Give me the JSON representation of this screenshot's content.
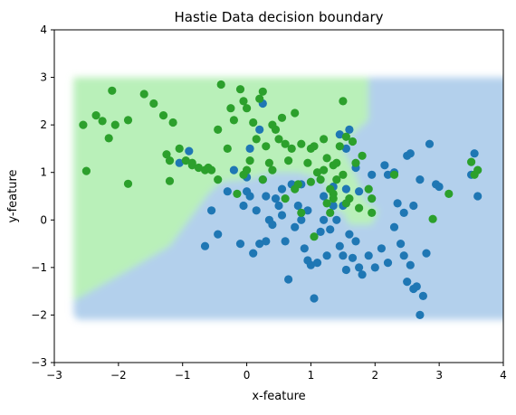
{
  "chart_data": {
    "type": "scatter",
    "title": "Hastie Data decision boundary",
    "xlabel": "x-feature",
    "ylabel": "y-feature",
    "xlim": [
      -3,
      4
    ],
    "ylim": [
      -3,
      4
    ],
    "x_ticks": [
      "−3",
      "−2",
      "−1",
      "0",
      "1",
      "2",
      "3",
      "4"
    ],
    "y_ticks": [
      "−3",
      "−2",
      "−1",
      "0",
      "1",
      "2",
      "3",
      "4"
    ],
    "grid": false,
    "legend": "none",
    "background_regions": {
      "green_region": "#b9f0b9",
      "blue_region": "#b3d0ec",
      "region_extent_x": [
        -2.7,
        4.0
      ],
      "region_extent_y": [
        -2.1,
        3.0
      ],
      "boundary_polygon_green": [
        [
          -2.7,
          3.0
        ],
        [
          1.9,
          3.0
        ],
        [
          1.9,
          2.1
        ],
        [
          1.6,
          1.75
        ],
        [
          1.5,
          1.5
        ],
        [
          1.65,
          1.1
        ],
        [
          1.85,
          0.4
        ],
        [
          2.05,
          0.2
        ],
        [
          1.95,
          -0.1
        ],
        [
          1.6,
          -0.1
        ],
        [
          1.5,
          0.15
        ],
        [
          1.3,
          0.3
        ],
        [
          1.2,
          0.85
        ],
        [
          0.8,
          1.0
        ],
        [
          0.4,
          1.0
        ],
        [
          0.0,
          0.85
        ],
        [
          -0.4,
          0.8
        ],
        [
          -0.6,
          0.55
        ],
        [
          -1.2,
          -0.55
        ],
        [
          -1.9,
          -1.1
        ],
        [
          -2.7,
          -1.7
        ]
      ]
    },
    "series": [
      {
        "color": "#1f77b4",
        "points": [
          [
            -0.45,
            -0.3
          ],
          [
            -0.65,
            -0.55
          ],
          [
            -0.55,
            0.2
          ],
          [
            -0.9,
            1.45
          ],
          [
            -1.05,
            1.2
          ],
          [
            -0.1,
            -0.5
          ],
          [
            0.0,
            0.6
          ],
          [
            0.05,
            0.5
          ],
          [
            0.15,
            0.2
          ],
          [
            0.1,
            -0.7
          ],
          [
            0.2,
            -0.5
          ],
          [
            0.25,
            0.85
          ],
          [
            0.3,
            0.5
          ],
          [
            0.35,
            0.0
          ],
          [
            0.4,
            -0.1
          ],
          [
            0.45,
            0.45
          ],
          [
            0.5,
            0.3
          ],
          [
            0.55,
            0.1
          ],
          [
            0.6,
            -0.45
          ],
          [
            0.65,
            -1.25
          ],
          [
            0.7,
            0.75
          ],
          [
            0.75,
            -0.15
          ],
          [
            0.8,
            0.3
          ],
          [
            0.85,
            0.0
          ],
          [
            0.9,
            -0.6
          ],
          [
            0.95,
            -0.85
          ],
          [
            1.0,
            -0.95
          ],
          [
            1.05,
            -1.65
          ],
          [
            1.1,
            -0.9
          ],
          [
            1.15,
            -0.25
          ],
          [
            1.2,
            0.0
          ],
          [
            1.25,
            -0.75
          ],
          [
            1.3,
            -0.2
          ],
          [
            1.35,
            0.3
          ],
          [
            1.4,
            0.0
          ],
          [
            1.45,
            -0.55
          ],
          [
            1.5,
            -0.75
          ],
          [
            1.55,
            -1.05
          ],
          [
            1.6,
            -0.3
          ],
          [
            1.65,
            -0.8
          ],
          [
            1.7,
            -0.45
          ],
          [
            1.75,
            -1.0
          ],
          [
            1.8,
            -1.15
          ],
          [
            1.9,
            -0.75
          ],
          [
            2.0,
            -1.0
          ],
          [
            2.1,
            -0.6
          ],
          [
            2.2,
            -0.9
          ],
          [
            2.3,
            -0.15
          ],
          [
            2.4,
            -0.5
          ],
          [
            2.45,
            -0.75
          ],
          [
            2.5,
            -1.3
          ],
          [
            2.55,
            -0.95
          ],
          [
            2.6,
            -1.45
          ],
          [
            2.65,
            -1.4
          ],
          [
            2.7,
            -2.0
          ],
          [
            2.75,
            -1.6
          ],
          [
            2.8,
            -0.7
          ],
          [
            2.2,
            0.95
          ],
          [
            2.3,
            1.0
          ],
          [
            2.35,
            0.35
          ],
          [
            2.45,
            0.15
          ],
          [
            2.5,
            1.35
          ],
          [
            2.55,
            1.4
          ],
          [
            2.6,
            0.3
          ],
          [
            2.7,
            0.85
          ],
          [
            2.85,
            1.6
          ],
          [
            2.95,
            0.75
          ],
          [
            3.0,
            0.7
          ],
          [
            2.15,
            1.15
          ],
          [
            1.95,
            0.95
          ],
          [
            1.55,
            1.5
          ],
          [
            1.45,
            1.8
          ],
          [
            1.6,
            1.9
          ],
          [
            1.7,
            1.1
          ],
          [
            1.75,
            0.6
          ],
          [
            1.5,
            0.3
          ],
          [
            1.55,
            0.65
          ],
          [
            3.55,
            1.4
          ],
          [
            3.6,
            0.5
          ],
          [
            3.5,
            0.95
          ],
          [
            0.0,
            0.9
          ],
          [
            -0.2,
            1.05
          ],
          [
            0.05,
            1.5
          ],
          [
            0.25,
            2.45
          ],
          [
            0.2,
            1.9
          ],
          [
            -0.05,
            0.3
          ],
          [
            0.95,
            0.2
          ],
          [
            0.85,
            0.75
          ],
          [
            1.2,
            0.5
          ],
          [
            0.3,
            -0.45
          ],
          [
            -0.3,
            0.6
          ],
          [
            0.55,
            0.65
          ],
          [
            1.35,
            0.7
          ]
        ]
      },
      {
        "color": "#2ca02c",
        "points": [
          [
            -2.55,
            2.0
          ],
          [
            -2.5,
            1.03
          ],
          [
            -2.35,
            2.2
          ],
          [
            -2.25,
            2.08
          ],
          [
            -2.15,
            1.72
          ],
          [
            -2.1,
            2.72
          ],
          [
            -2.05,
            2.0
          ],
          [
            -1.85,
            0.76
          ],
          [
            -1.85,
            2.1
          ],
          [
            -1.6,
            2.65
          ],
          [
            -1.45,
            2.45
          ],
          [
            -1.3,
            2.2
          ],
          [
            -1.25,
            1.38
          ],
          [
            -1.2,
            1.25
          ],
          [
            -1.2,
            0.82
          ],
          [
            -1.15,
            2.05
          ],
          [
            -1.05,
            1.5
          ],
          [
            -0.95,
            1.25
          ],
          [
            -0.85,
            1.15
          ],
          [
            -0.75,
            1.1
          ],
          [
            -0.65,
            1.05
          ],
          [
            -0.55,
            1.05
          ],
          [
            -0.45,
            0.85
          ],
          [
            -0.45,
            1.9
          ],
          [
            -0.4,
            2.85
          ],
          [
            -0.3,
            1.5
          ],
          [
            -0.25,
            2.35
          ],
          [
            -0.2,
            2.1
          ],
          [
            -0.15,
            0.55
          ],
          [
            -0.1,
            2.75
          ],
          [
            -0.05,
            2.5
          ],
          [
            0.0,
            2.35
          ],
          [
            0.0,
            1.05
          ],
          [
            0.05,
            1.25
          ],
          [
            0.1,
            2.05
          ],
          [
            0.15,
            1.7
          ],
          [
            0.2,
            2.55
          ],
          [
            0.25,
            2.7
          ],
          [
            0.3,
            1.55
          ],
          [
            0.35,
            1.2
          ],
          [
            0.4,
            2.0
          ],
          [
            0.45,
            1.9
          ],
          [
            0.5,
            1.7
          ],
          [
            0.55,
            2.15
          ],
          [
            0.6,
            1.6
          ],
          [
            0.65,
            1.25
          ],
          [
            0.7,
            1.5
          ],
          [
            0.75,
            2.25
          ],
          [
            0.8,
            0.75
          ],
          [
            0.85,
            1.6
          ],
          [
            0.95,
            1.2
          ],
          [
            1.0,
            1.5
          ],
          [
            1.05,
            1.55
          ],
          [
            1.1,
            1.0
          ],
          [
            1.15,
            0.85
          ],
          [
            1.2,
            1.7
          ],
          [
            1.25,
            1.3
          ],
          [
            1.3,
            0.65
          ],
          [
            1.35,
            1.15
          ],
          [
            1.4,
            0.85
          ],
          [
            1.45,
            1.55
          ],
          [
            1.5,
            2.5
          ],
          [
            1.55,
            1.75
          ],
          [
            1.6,
            0.45
          ],
          [
            1.65,
            1.65
          ],
          [
            1.7,
            1.2
          ],
          [
            1.75,
            0.25
          ],
          [
            1.8,
            1.35
          ],
          [
            1.9,
            0.65
          ],
          [
            1.95,
            0.15
          ],
          [
            1.95,
            0.45
          ],
          [
            1.3,
            0.15
          ],
          [
            1.35,
            0.55
          ],
          [
            1.25,
            0.35
          ],
          [
            1.05,
            -0.35
          ],
          [
            0.85,
            0.15
          ],
          [
            0.75,
            0.65
          ],
          [
            1.2,
            1.05
          ],
          [
            1.4,
            1.2
          ],
          [
            1.5,
            0.95
          ],
          [
            1.0,
            0.8
          ],
          [
            0.6,
            0.45
          ],
          [
            -0.05,
            0.95
          ],
          [
            0.25,
            0.85
          ],
          [
            0.4,
            1.05
          ],
          [
            2.3,
            0.95
          ],
          [
            2.9,
            0.02
          ],
          [
            3.15,
            0.55
          ],
          [
            3.5,
            1.22
          ],
          [
            3.6,
            1.05
          ],
          [
            3.55,
            0.95
          ],
          [
            1.35,
            0.45
          ],
          [
            1.55,
            0.35
          ],
          [
            -0.6,
            1.1
          ],
          [
            -0.85,
            1.2
          ]
        ]
      }
    ]
  }
}
